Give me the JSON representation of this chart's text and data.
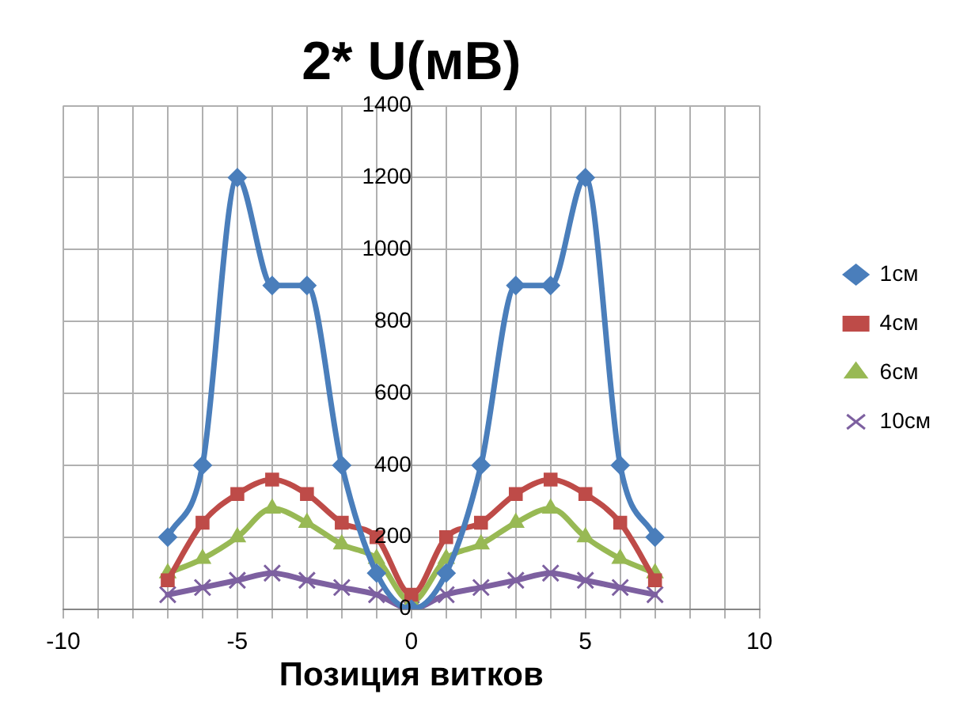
{
  "chart_data": {
    "type": "line",
    "title": "2* U(мВ)",
    "xlabel": "Позиция витков",
    "x": [
      -7,
      -6,
      -5,
      -4,
      -3,
      -2,
      -1,
      0,
      1,
      2,
      3,
      4,
      5,
      6,
      7
    ],
    "series": [
      {
        "name": "1см",
        "color": "#4a7ebb",
        "marker": "diamond",
        "values": [
          200,
          400,
          1200,
          900,
          900,
          400,
          100,
          0,
          100,
          400,
          900,
          900,
          1200,
          400,
          200
        ]
      },
      {
        "name": "4см",
        "color": "#be4b48",
        "marker": "square",
        "values": [
          80,
          240,
          320,
          360,
          320,
          240,
          200,
          40,
          200,
          240,
          320,
          360,
          320,
          240,
          80
        ]
      },
      {
        "name": "6см",
        "color": "#98b954",
        "marker": "triangle",
        "values": [
          100,
          140,
          200,
          280,
          240,
          180,
          140,
          20,
          140,
          180,
          240,
          280,
          200,
          140,
          100
        ]
      },
      {
        "name": "10см",
        "color": "#7d60a0",
        "marker": "cross",
        "values": [
          40,
          60,
          80,
          100,
          80,
          60,
          40,
          0,
          40,
          60,
          80,
          100,
          80,
          60,
          40
        ]
      }
    ],
    "xlim": [
      -10,
      10
    ],
    "xticks": [
      -10,
      {
        "value": -9,
        "label": null
      },
      {
        "value": -8,
        "label": null
      },
      {
        "value": -7,
        "label": null
      },
      {
        "value": -6,
        "label": null
      },
      -5,
      {
        "value": -4,
        "label": null
      },
      {
        "value": -3,
        "label": null
      },
      {
        "value": -2,
        "label": null
      },
      {
        "value": -1,
        "label": null
      },
      0,
      {
        "value": 1,
        "label": null
      },
      {
        "value": 2,
        "label": null
      },
      {
        "value": 3,
        "label": null
      },
      {
        "value": 4,
        "label": null
      },
      5,
      {
        "value": 6,
        "label": null
      },
      {
        "value": 7,
        "label": null
      },
      {
        "value": 8,
        "label": null
      },
      {
        "value": 9,
        "label": null
      },
      10
    ],
    "ylim": [
      0,
      1400
    ],
    "yticks": [
      0,
      200,
      400,
      600,
      800,
      1000,
      1200,
      1400
    ],
    "grid": true,
    "legend": "right",
    "line_style": "solid"
  }
}
